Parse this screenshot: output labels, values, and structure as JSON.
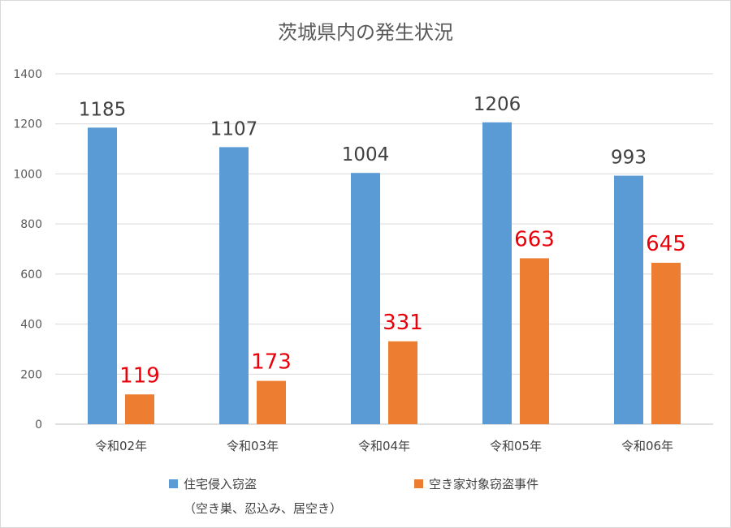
{
  "chart_data": {
    "type": "bar",
    "title": "茨城県内の発生状況",
    "categories": [
      "令和02年",
      "令和03年",
      "令和04年",
      "令和05年",
      "令和06年"
    ],
    "series": [
      {
        "name": "住宅侵入窃盗",
        "values": [
          1185,
          1107,
          1004,
          1206,
          993
        ]
      },
      {
        "name": "空き家対象窃盗事件",
        "values": [
          119,
          173,
          331,
          663,
          645
        ]
      }
    ],
    "legend_note": "（空き巣、忍込み、居空き）",
    "ylim": [
      0,
      1400
    ],
    "yticks": [
      0,
      200,
      400,
      600,
      800,
      1000,
      1200,
      1400
    ],
    "grid": true,
    "legend_position": "bottom",
    "colors": {
      "series1": "#5b9bd5",
      "series2": "#ed7d31",
      "series2_label": "#e8000b",
      "grid": "#d9d9d9",
      "axis": "#bfbfbf"
    },
    "data_labels": true
  }
}
